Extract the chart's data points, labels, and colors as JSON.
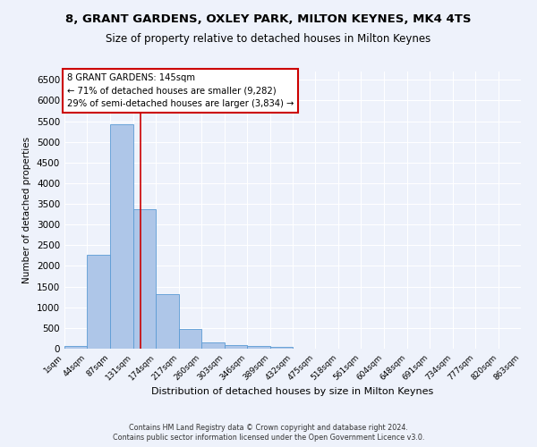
{
  "title_line1": "8, GRANT GARDENS, OXLEY PARK, MILTON KEYNES, MK4 4TS",
  "title_line2": "Size of property relative to detached houses in Milton Keynes",
  "xlabel": "Distribution of detached houses by size in Milton Keynes",
  "ylabel": "Number of detached properties",
  "footer_line1": "Contains HM Land Registry data © Crown copyright and database right 2024.",
  "footer_line2": "Contains public sector information licensed under the Open Government Licence v3.0.",
  "bar_edges": [
    1,
    44,
    87,
    131,
    174,
    217,
    260,
    303,
    346,
    389,
    432,
    475,
    518,
    561,
    604,
    648,
    691,
    734,
    777,
    820,
    863
  ],
  "bar_heights": [
    75,
    2280,
    5420,
    3380,
    1310,
    480,
    160,
    80,
    60,
    40,
    0,
    0,
    0,
    0,
    0,
    0,
    0,
    0,
    0,
    0
  ],
  "bar_color": "#aec6e8",
  "bar_edgecolor": "#5b9bd5",
  "property_size": 145,
  "vline_color": "#cc0000",
  "annotation_title": "8 GRANT GARDENS: 145sqm",
  "annotation_line2": "← 71% of detached houses are smaller (9,282)",
  "annotation_line3": "29% of semi-detached houses are larger (3,834) →",
  "annotation_box_edgecolor": "#cc0000",
  "annotation_box_facecolor": "#ffffff",
  "ylim": [
    0,
    6700
  ],
  "yticks": [
    0,
    500,
    1000,
    1500,
    2000,
    2500,
    3000,
    3500,
    4000,
    4500,
    5000,
    5500,
    6000,
    6500
  ],
  "bg_color": "#eef2fb",
  "grid_color": "#ffffff",
  "title_fontsize": 9.5,
  "subtitle_fontsize": 8.5,
  "tick_label_fontsize": 6.5,
  "ylabel_fontsize": 7.5,
  "xlabel_fontsize": 8.0,
  "ytick_fontsize": 7.5,
  "footer_fontsize": 5.8
}
